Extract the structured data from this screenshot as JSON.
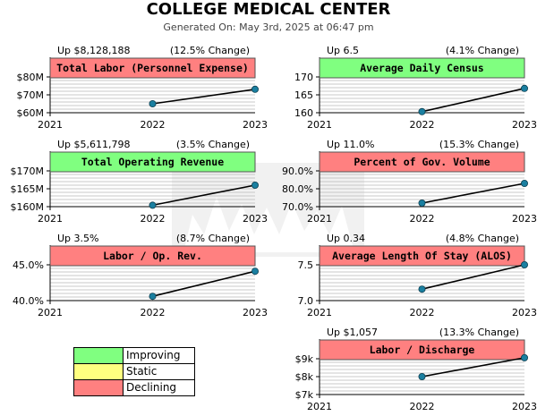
{
  "header": {
    "title": "COLLEGE MEDICAL CENTER",
    "subtitle": "Generated On: May 3rd, 2025 at 06:47 pm"
  },
  "colors": {
    "improving": "#80ff80",
    "static": "#ffff80",
    "declining": "#ff8080",
    "line": "#000000",
    "marker": "#1a7fa0"
  },
  "legend": [
    {
      "label": "Improving",
      "color": "#80ff80"
    },
    {
      "label": "Static",
      "color": "#ffff80"
    },
    {
      "label": "Declining",
      "color": "#ff8080"
    }
  ],
  "chart_data": [
    {
      "type": "line",
      "title": "Total Labor (Personnel Expense)",
      "status": "declining",
      "change_left": "Up $8,128,188",
      "change_right": "(12.5% Change)",
      "x": [
        2022,
        2023
      ],
      "y": [
        65,
        73.1
      ],
      "xlim": [
        2021,
        2023
      ],
      "ylim": [
        60,
        80
      ],
      "yticks": [
        60,
        70,
        80
      ],
      "ytick_labels": [
        "$60M",
        "$70M",
        "$80M"
      ],
      "xtick_labels": [
        "2021",
        "2022",
        "2023"
      ]
    },
    {
      "type": "line",
      "title": "Average Daily Census",
      "status": "improving",
      "change_left": "Up 6.5",
      "change_right": "(4.1% Change)",
      "x": [
        2022,
        2023
      ],
      "y": [
        160.3,
        166.8
      ],
      "xlim": [
        2021,
        2023
      ],
      "ylim": [
        160,
        170
      ],
      "yticks": [
        160,
        165,
        170
      ],
      "ytick_labels": [
        "160",
        "165",
        "170"
      ],
      "xtick_labels": [
        "2021",
        "2022",
        "2023"
      ]
    },
    {
      "type": "line",
      "title": "Total Operating Revenue",
      "status": "improving",
      "change_left": "Up $5,611,798",
      "change_right": "(3.5% Change)",
      "x": [
        2022,
        2023
      ],
      "y": [
        160.4,
        166
      ],
      "xlim": [
        2021,
        2023
      ],
      "ylim": [
        160,
        170
      ],
      "yticks": [
        160,
        165,
        170
      ],
      "ytick_labels": [
        "$160M",
        "$165M",
        "$170M"
      ],
      "xtick_labels": [
        "2021",
        "2022",
        "2023"
      ]
    },
    {
      "type": "line",
      "title": "Percent of Gov. Volume",
      "status": "declining",
      "change_left": "Up 11.0%",
      "change_right": "(15.3% Change)",
      "x": [
        2022,
        2023
      ],
      "y": [
        72,
        83
      ],
      "xlim": [
        2021,
        2023
      ],
      "ylim": [
        70,
        90
      ],
      "yticks": [
        70,
        80,
        90
      ],
      "ytick_labels": [
        "70.0%",
        "80.0%",
        "90.0%"
      ],
      "xtick_labels": [
        "2021",
        "2022",
        "2023"
      ]
    },
    {
      "type": "line",
      "title": "Labor / Op. Rev.",
      "status": "declining",
      "change_left": "Up 3.5%",
      "change_right": "(8.7% Change)",
      "x": [
        2022,
        2023
      ],
      "y": [
        40.6,
        44.1
      ],
      "xlim": [
        2021,
        2023
      ],
      "ylim": [
        40,
        45
      ],
      "yticks": [
        40,
        45
      ],
      "ytick_labels": [
        "40.0%",
        "45.0%"
      ],
      "xtick_labels": [
        "2021",
        "2022",
        "2023"
      ]
    },
    {
      "type": "line",
      "title": "Average Length Of Stay (ALOS)",
      "status": "declining",
      "change_left": "Up 0.34",
      "change_right": "(4.8% Change)",
      "x": [
        2022,
        2023
      ],
      "y": [
        7.16,
        7.5
      ],
      "xlim": [
        2021,
        2023
      ],
      "ylim": [
        7.0,
        7.5
      ],
      "yticks": [
        7.0,
        7.5
      ],
      "ytick_labels": [
        "7.0",
        "7.5"
      ],
      "xtick_labels": [
        "2021",
        "2022",
        "2023"
      ]
    },
    {
      "type": "line",
      "title": "Labor / Discharge",
      "status": "declining",
      "change_left": "Up $1,057",
      "change_right": "(13.3% Change)",
      "x": [
        2022,
        2023
      ],
      "y": [
        8000,
        9057
      ],
      "xlim": [
        2021,
        2023
      ],
      "ylim": [
        7000,
        9000
      ],
      "yticks": [
        7000,
        8000,
        9000
      ],
      "ytick_labels": [
        "$7k",
        "$8k",
        "$9k"
      ],
      "xtick_labels": [
        "2021",
        "2022",
        "2023"
      ]
    }
  ]
}
